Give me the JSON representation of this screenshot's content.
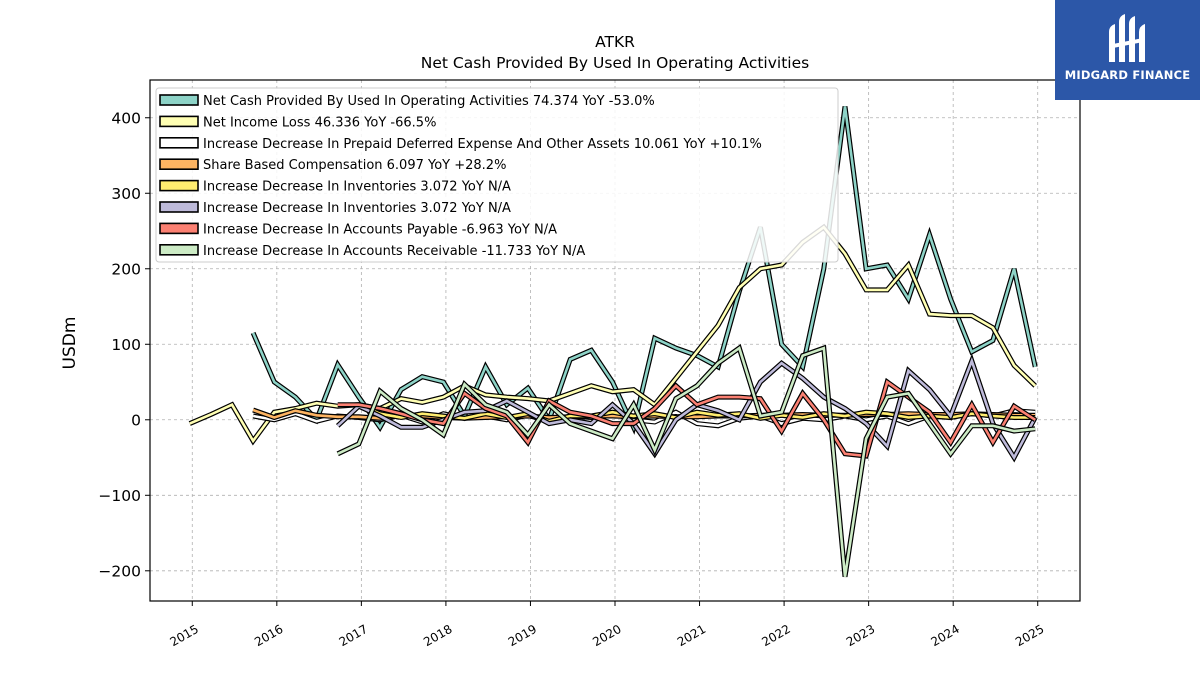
{
  "brand": {
    "name": "MIDGARD FINANCE",
    "logo_icon": "midgard-logo-icon",
    "color": "#2c57a8"
  },
  "chart_data": {
    "type": "line",
    "title": "ATKR",
    "subtitle": "Net Cash Provided By Used In Operating Activities",
    "ylabel": "USDm",
    "xlabel": "",
    "x_range": [
      2014.5,
      2025.5
    ],
    "ylim": [
      -240,
      450
    ],
    "yticks": [
      -200,
      -100,
      0,
      100,
      200,
      300,
      400
    ],
    "ytick_labels": [
      "−200",
      "−100",
      "0",
      "100",
      "200",
      "300",
      "400"
    ],
    "xticks": [
      2015,
      2016,
      2017,
      2018,
      2019,
      2020,
      2021,
      2022,
      2023,
      2024,
      2025
    ],
    "xtick_labels": [
      "2015",
      "2016",
      "2017",
      "2018",
      "2019",
      "2020",
      "2021",
      "2022",
      "2023",
      "2024",
      "2025"
    ],
    "grid": true,
    "legend_position": "top-left",
    "series": [
      {
        "name": "Net Cash Provided By Used In Operating Activities",
        "legend": "Net Cash Provided By Used In Operating Activities  74.374 YoY -53.0%",
        "color": "#8dd3c7",
        "x": [
          2015.72,
          2015.97,
          2016.22,
          2016.47,
          2016.72,
          2016.97,
          2017.22,
          2017.47,
          2017.72,
          2017.97,
          2018.22,
          2018.47,
          2018.72,
          2018.97,
          2019.22,
          2019.47,
          2019.72,
          2019.97,
          2020.22,
          2020.47,
          2020.72,
          2020.97,
          2021.22,
          2021.47,
          2021.72,
          2021.97,
          2022.22,
          2022.47,
          2022.72,
          2022.97,
          2023.22,
          2023.47,
          2023.72,
          2023.97,
          2024.22,
          2024.47,
          2024.72,
          2024.97
        ],
        "y": [
          115,
          50,
          30,
          0,
          73,
          30,
          -10,
          40,
          57,
          50,
          5,
          70,
          20,
          42,
          0,
          80,
          92,
          50,
          -10,
          108,
          95,
          85,
          70,
          170,
          255,
          100,
          70,
          200,
          415,
          200,
          205,
          160,
          245,
          160,
          90,
          105,
          200,
          70
        ]
      },
      {
        "name": "Net Income Loss",
        "legend": "Net Income Loss  46.336 YoY -66.5%",
        "color": "#ffffb3",
        "x": [
          2014.97,
          2015.22,
          2015.47,
          2015.72,
          2015.97,
          2016.22,
          2016.47,
          2016.72,
          2016.97,
          2017.22,
          2017.47,
          2017.72,
          2017.97,
          2018.22,
          2018.47,
          2018.72,
          2018.97,
          2019.22,
          2019.47,
          2019.72,
          2019.97,
          2020.22,
          2020.47,
          2020.72,
          2020.97,
          2021.22,
          2021.47,
          2021.72,
          2021.97,
          2022.22,
          2022.47,
          2022.72,
          2022.97,
          2023.22,
          2023.47,
          2023.72,
          2023.97,
          2024.22,
          2024.47,
          2024.72,
          2024.97
        ],
        "y": [
          -5,
          7,
          20,
          -28,
          10,
          15,
          22,
          18,
          20,
          15,
          28,
          23,
          30,
          45,
          33,
          30,
          28,
          25,
          35,
          45,
          37,
          40,
          20,
          55,
          90,
          125,
          175,
          200,
          205,
          235,
          255,
          220,
          172,
          172,
          205,
          140,
          138,
          138,
          122,
          72,
          45
        ]
      },
      {
        "name": "Increase Decrease In Prepaid Deferred Expense And Other Assets",
        "legend": "Increase Decrease In Prepaid Deferred Expense And Other Assets  10.061 YoY +10.1%",
        "color": "#ffffff",
        "x": [
          2015.72,
          2015.97,
          2016.22,
          2016.47,
          2016.72,
          2016.97,
          2017.22,
          2017.47,
          2017.72,
          2017.97,
          2018.22,
          2018.47,
          2018.72,
          2018.97,
          2019.22,
          2019.47,
          2019.72,
          2019.97,
          2020.22,
          2020.47,
          2020.72,
          2020.97,
          2021.22,
          2021.47,
          2021.72,
          2021.97,
          2022.22,
          2022.47,
          2022.72,
          2022.97,
          2023.22,
          2023.47,
          2023.72,
          2023.97,
          2024.22,
          2024.47,
          2024.72,
          2024.97
        ],
        "y": [
          5,
          0,
          8,
          -2,
          5,
          3,
          0,
          6,
          -3,
          8,
          2,
          5,
          0,
          6,
          -2,
          5,
          3,
          8,
          0,
          -3,
          10,
          -5,
          -8,
          2,
          5,
          -5,
          2,
          0,
          5,
          0,
          5,
          -5,
          5,
          3,
          8,
          5,
          12,
          10
        ]
      },
      {
        "name": "Share Based Compensation",
        "legend": "Share Based Compensation  6.097 YoY +28.2%",
        "color": "#fdb462",
        "x": [
          2015.72,
          2015.97,
          2016.22,
          2016.47,
          2016.72,
          2016.97,
          2017.22,
          2017.47,
          2017.72,
          2017.97,
          2018.22,
          2018.47,
          2018.72,
          2018.97,
          2019.22,
          2019.47,
          2019.72,
          2019.97,
          2020.22,
          2020.47,
          2020.72,
          2020.97,
          2021.22,
          2021.47,
          2021.72,
          2021.97,
          2022.22,
          2022.47,
          2022.72,
          2022.97,
          2023.22,
          2023.47,
          2023.72,
          2023.97,
          2024.22,
          2024.47,
          2024.72,
          2024.97
        ],
        "y": [
          13,
          3,
          12,
          6,
          4,
          4,
          2,
          6,
          5,
          3,
          2,
          3,
          4,
          5,
          3,
          4,
          5,
          5,
          4,
          5,
          4,
          4,
          5,
          5,
          6,
          6,
          7,
          6,
          6,
          7,
          7,
          8,
          7,
          7,
          8,
          7,
          6,
          6
        ]
      },
      {
        "name": "Increase Decrease In Inventories",
        "legend": "Increase Decrease In Inventories  3.072 YoY N/A",
        "color": "#ffed6f",
        "x": [
          2016.97,
          2017.22,
          2017.47,
          2017.72,
          2017.97,
          2018.22,
          2018.47,
          2018.72,
          2018.97,
          2019.22,
          2019.47,
          2019.72,
          2019.97,
          2020.22,
          2020.47,
          2020.72,
          2020.97,
          2021.22,
          2021.47,
          2021.72,
          2021.97,
          2022.22,
          2022.47,
          2022.72,
          2022.97,
          2023.22,
          2023.47,
          2023.72,
          2023.97,
          2024.22,
          2024.47,
          2024.72,
          2024.97
        ],
        "y": [
          20,
          8,
          3,
          8,
          5,
          2,
          8,
          3,
          8,
          -2,
          5,
          5,
          10,
          5,
          8,
          3,
          10,
          6,
          8,
          2,
          6,
          3,
          8,
          5,
          10,
          8,
          3,
          5,
          3,
          8,
          5,
          3,
          3
        ]
      },
      {
        "name": "Increase Decrease In Inventories",
        "legend": "Increase Decrease In Inventories  3.072 YoY N/A",
        "color": "#bebada",
        "x": [
          2016.72,
          2016.97,
          2017.22,
          2017.47,
          2017.72,
          2017.97,
          2018.22,
          2018.47,
          2018.72,
          2018.97,
          2019.22,
          2019.47,
          2019.72,
          2019.97,
          2020.22,
          2020.47,
          2020.72,
          2020.97,
          2021.22,
          2021.47,
          2021.72,
          2021.97,
          2022.22,
          2022.47,
          2022.72,
          2022.97,
          2023.22,
          2023.47,
          2023.72,
          2023.97,
          2024.22,
          2024.47,
          2024.72,
          2024.97
        ],
        "y": [
          -8,
          18,
          5,
          -10,
          -10,
          0,
          10,
          12,
          25,
          10,
          -5,
          0,
          -5,
          20,
          -5,
          -45,
          0,
          20,
          12,
          0,
          50,
          75,
          55,
          30,
          15,
          -5,
          -35,
          65,
          40,
          5,
          78,
          -5,
          -50,
          3
        ]
      },
      {
        "name": "Increase Decrease In Accounts Payable",
        "legend": "Increase Decrease In Accounts Payable  -6.963 YoY N/A",
        "color": "#fb8072",
        "x": [
          2016.72,
          2016.97,
          2017.22,
          2017.47,
          2017.72,
          2017.97,
          2018.22,
          2018.47,
          2018.72,
          2018.97,
          2019.22,
          2019.47,
          2019.72,
          2019.97,
          2020.22,
          2020.47,
          2020.72,
          2020.97,
          2021.22,
          2021.47,
          2021.72,
          2021.97,
          2022.22,
          2022.47,
          2022.72,
          2022.97,
          2023.22,
          2023.47,
          2023.72,
          2023.97,
          2024.22,
          2024.47,
          2024.72,
          2024.97
        ],
        "y": [
          20,
          20,
          15,
          8,
          0,
          -5,
          35,
          15,
          5,
          -30,
          25,
          10,
          5,
          -5,
          -5,
          15,
          45,
          20,
          30,
          30,
          28,
          -15,
          35,
          0,
          -45,
          -48,
          50,
          30,
          10,
          -30,
          20,
          -30,
          18,
          0
        ]
      },
      {
        "name": "Increase Decrease In Accounts Receivable",
        "legend": "Increase Decrease In Accounts Receivable  -11.733 YoY N/A",
        "color": "#ccebc5",
        "x": [
          2016.72,
          2016.97,
          2017.22,
          2017.47,
          2017.72,
          2017.97,
          2018.22,
          2018.47,
          2018.72,
          2018.97,
          2019.22,
          2019.47,
          2019.72,
          2019.97,
          2020.22,
          2020.47,
          2020.72,
          2020.97,
          2021.22,
          2021.47,
          2021.72,
          2021.97,
          2022.22,
          2022.47,
          2022.72,
          2022.97,
          2023.22,
          2023.47,
          2023.72,
          2023.97,
          2024.22,
          2024.47,
          2024.72,
          2024.97
        ],
        "y": [
          -45,
          -32,
          38,
          15,
          0,
          -20,
          47,
          20,
          10,
          -20,
          20,
          -5,
          -15,
          -25,
          20,
          -40,
          28,
          45,
          75,
          95,
          5,
          10,
          85,
          95,
          -208,
          -25,
          30,
          35,
          -5,
          -45,
          -8,
          -8,
          -15,
          -12
        ]
      }
    ]
  }
}
